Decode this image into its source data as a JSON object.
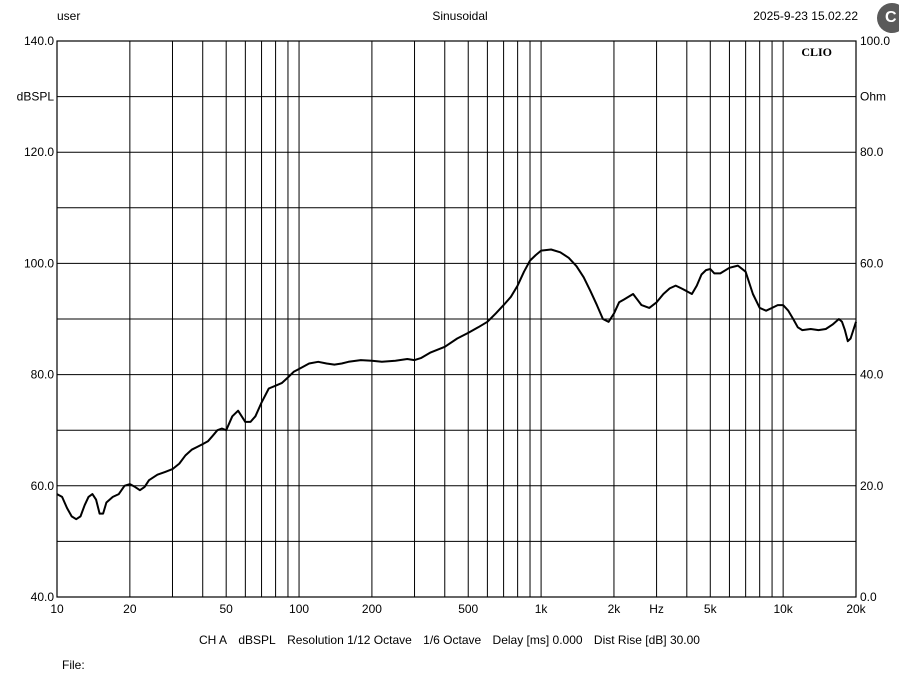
{
  "header": {
    "user": "user",
    "mode": "Sinusoidal",
    "datetime": "2025-9-23 15.02.22"
  },
  "footer": {
    "channel": "CH A",
    "unit": "dBSPL",
    "resolution": "Resolution 1/12 Octave",
    "smoothing": "1/6 Octave",
    "delay": "Delay [ms] 0.000",
    "dist_rise": "Dist Rise [dB] 30.00",
    "file_label": "File:"
  },
  "chart_data": {
    "type": "line",
    "title": "",
    "brand_label": "CLIO",
    "xlabel": "Hz",
    "x_scale": "log",
    "xlim": [
      10,
      20000
    ],
    "x_ticks": [
      10,
      20,
      50,
      100,
      200,
      500,
      1000,
      2000,
      5000,
      10000,
      20000
    ],
    "x_tick_labels": [
      "10",
      "20",
      "50",
      "100",
      "200",
      "500",
      "1k",
      "2k",
      "5k",
      "10k",
      "20k"
    ],
    "ylabel_left": "dBSPL",
    "ylim_left": [
      40,
      140
    ],
    "y_ticks_left": [
      "140.0",
      "120.0",
      "100.0",
      "80.0",
      "60.0",
      "40.0"
    ],
    "ylabel_right": "Ohm",
    "ylim_right": [
      0,
      100
    ],
    "y_ticks_right": [
      "100.0",
      "80.0",
      "60.0",
      "40.0",
      "20.0",
      "0.0"
    ],
    "grid": true,
    "line_color": "#000000",
    "series": [
      {
        "x": [
          10,
          10.5,
          11,
          11.5,
          12,
          12.5,
          13,
          13.5,
          14,
          14.5,
          15,
          15.5,
          16,
          17,
          18,
          19,
          20,
          21,
          22,
          23,
          24,
          26,
          28,
          30,
          32,
          34,
          36,
          38,
          40,
          42,
          44,
          46,
          48,
          50,
          53,
          56,
          60,
          63,
          66,
          70,
          75,
          80,
          85,
          90,
          95,
          100,
          110,
          120,
          130,
          140,
          150,
          160,
          180,
          200,
          220,
          250,
          280,
          300,
          320,
          350,
          400,
          450,
          500,
          550,
          600,
          650,
          700,
          750,
          800,
          850,
          900,
          950,
          1000,
          1100,
          1200,
          1300,
          1400,
          1500,
          1600,
          1700,
          1800,
          1900,
          2000,
          2100,
          2200,
          2400,
          2600,
          2800,
          3000,
          3200,
          3400,
          3600,
          3800,
          4000,
          4200,
          4400,
          4600,
          4800,
          5000,
          5200,
          5500,
          6000,
          6500,
          7000,
          7500,
          8000,
          8500,
          9000,
          9500,
          10000,
          10500,
          11000,
          11500,
          12000,
          13000,
          14000,
          15000,
          16000,
          17000,
          17500,
          18000,
          18500,
          19000,
          20000
        ],
        "y": [
          58.5,
          58.0,
          56.0,
          54.5,
          54.0,
          54.5,
          56.5,
          58.0,
          58.5,
          57.5,
          55.0,
          55.0,
          57.0,
          58.0,
          58.5,
          60.0,
          60.3,
          59.8,
          59.2,
          59.8,
          61.0,
          62.0,
          62.5,
          63.0,
          64.0,
          65.5,
          66.5,
          67.0,
          67.5,
          68.0,
          69.0,
          70.0,
          70.3,
          70.0,
          72.5,
          73.5,
          71.5,
          71.5,
          72.5,
          75.0,
          77.5,
          78.0,
          78.5,
          79.5,
          80.5,
          81.0,
          82.0,
          82.3,
          82.0,
          81.8,
          82.0,
          82.3,
          82.6,
          82.5,
          82.3,
          82.5,
          82.8,
          82.6,
          83.0,
          84.0,
          85.0,
          86.5,
          87.5,
          88.5,
          89.5,
          91.0,
          92.5,
          94.0,
          96.0,
          98.5,
          100.5,
          101.5,
          102.3,
          102.5,
          102.0,
          101.0,
          99.5,
          97.5,
          95.0,
          92.5,
          90.0,
          89.5,
          91.0,
          93.0,
          93.5,
          94.5,
          92.5,
          92.0,
          93.0,
          94.5,
          95.5,
          96.0,
          95.5,
          95.0,
          94.5,
          96.0,
          98.0,
          98.8,
          99.0,
          98.2,
          98.2,
          99.2,
          99.6,
          98.5,
          94.5,
          92.0,
          91.5,
          92.0,
          92.5,
          92.5,
          91.5,
          90.0,
          88.5,
          88.0,
          88.2,
          88.0,
          88.2,
          89.0,
          90.0,
          89.5,
          88.0,
          86.0,
          86.5,
          89.5
        ]
      }
    ]
  }
}
